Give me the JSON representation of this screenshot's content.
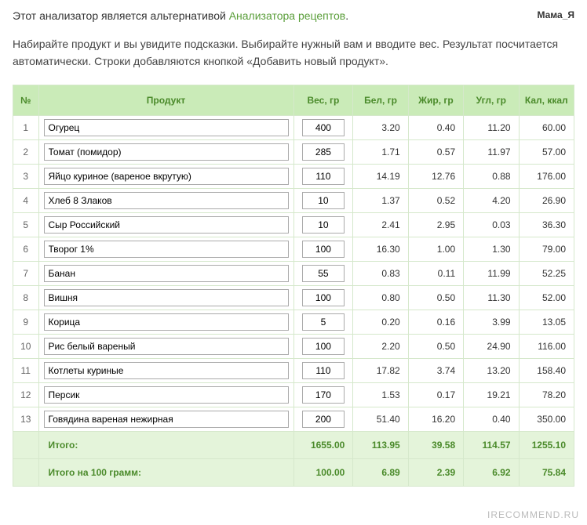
{
  "author": "Мама_Я",
  "intro": {
    "part1": "Этот анализатор является альтернативой ",
    "link": "Анализатора рецептов",
    "suffix": ".",
    "para2": "Набирайте продукт и вы увидите подсказки. Выбирайте нужный вам и вводите вес. Результат посчитается автоматически. Строки добавляются кнопкой «Добавить новый продукт»."
  },
  "table": {
    "columns": {
      "num": "№",
      "product": "Продукт",
      "weight": "Вес, гр",
      "protein": "Бел, гр",
      "fat": "Жир, гр",
      "carb": "Угл, гр",
      "cal": "Кал, ккал"
    },
    "rows": [
      {
        "n": "1",
        "product": "Огурец",
        "weight": "400",
        "protein": "3.20",
        "fat": "0.40",
        "carb": "11.20",
        "cal": "60.00"
      },
      {
        "n": "2",
        "product": "Томат (помидор)",
        "weight": "285",
        "protein": "1.71",
        "fat": "0.57",
        "carb": "11.97",
        "cal": "57.00"
      },
      {
        "n": "3",
        "product": "Яйцо куриное (вареное вкрутую)",
        "weight": "110",
        "protein": "14.19",
        "fat": "12.76",
        "carb": "0.88",
        "cal": "176.00"
      },
      {
        "n": "4",
        "product": "Хлеб 8 Злаков",
        "weight": "10",
        "protein": "1.37",
        "fat": "0.52",
        "carb": "4.20",
        "cal": "26.90"
      },
      {
        "n": "5",
        "product": "Сыр Российский",
        "weight": "10",
        "protein": "2.41",
        "fat": "2.95",
        "carb": "0.03",
        "cal": "36.30"
      },
      {
        "n": "6",
        "product": "Творог 1%",
        "weight": "100",
        "protein": "16.30",
        "fat": "1.00",
        "carb": "1.30",
        "cal": "79.00"
      },
      {
        "n": "7",
        "product": "Банан",
        "weight": "55",
        "protein": "0.83",
        "fat": "0.11",
        "carb": "11.99",
        "cal": "52.25"
      },
      {
        "n": "8",
        "product": "Вишня",
        "weight": "100",
        "protein": "0.80",
        "fat": "0.50",
        "carb": "11.30",
        "cal": "52.00"
      },
      {
        "n": "9",
        "product": "Корица",
        "weight": "5",
        "protein": "0.20",
        "fat": "0.16",
        "carb": "3.99",
        "cal": "13.05"
      },
      {
        "n": "10",
        "product": "Рис белый вареный",
        "weight": "100",
        "protein": "2.20",
        "fat": "0.50",
        "carb": "24.90",
        "cal": "116.00"
      },
      {
        "n": "11",
        "product": "Котлеты куриные",
        "weight": "110",
        "protein": "17.82",
        "fat": "3.74",
        "carb": "13.20",
        "cal": "158.40"
      },
      {
        "n": "12",
        "product": "Персик",
        "weight": "170",
        "protein": "1.53",
        "fat": "0.17",
        "carb": "19.21",
        "cal": "78.20"
      },
      {
        "n": "13",
        "product": "Говядина вареная нежирная",
        "weight": "200",
        "protein": "51.40",
        "fat": "16.20",
        "carb": "0.40",
        "cal": "350.00"
      }
    ],
    "totals": {
      "label": "Итого:",
      "weight": "1655.00",
      "protein": "113.95",
      "fat": "39.58",
      "carb": "114.57",
      "cal": "1255.10"
    },
    "per100": {
      "label": "Итого на 100 грамм:",
      "weight": "100.00",
      "protein": "6.89",
      "fat": "2.39",
      "carb": "6.92",
      "cal": "75.84"
    }
  },
  "watermark": "IRECOMMEND.RU",
  "colors": {
    "header_bg": "#caebb8",
    "header_text": "#4a8a2a",
    "border": "#d5e8cb",
    "total_bg": "#e4f4da",
    "link": "#5a9e3a"
  }
}
